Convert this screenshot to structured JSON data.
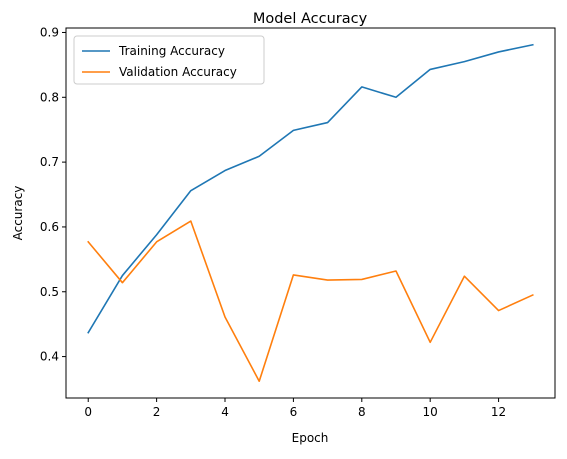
{
  "chart_data": {
    "type": "line",
    "title": "Model Accuracy",
    "xlabel": "Epoch",
    "ylabel": "Accuracy",
    "x": [
      0,
      1,
      2,
      3,
      4,
      5,
      6,
      7,
      8,
      9,
      10,
      11,
      12,
      13
    ],
    "series": [
      {
        "name": "Training Accuracy",
        "color": "#1f77b4",
        "values": [
          0.437,
          0.525,
          0.588,
          0.656,
          0.687,
          0.709,
          0.749,
          0.761,
          0.816,
          0.8,
          0.843,
          0.855,
          0.87,
          0.881
        ]
      },
      {
        "name": "Validation Accuracy",
        "color": "#ff7f0e",
        "values": [
          0.577,
          0.514,
          0.577,
          0.609,
          0.461,
          0.362,
          0.526,
          0.518,
          0.519,
          0.532,
          0.422,
          0.524,
          0.471,
          0.495
        ]
      }
    ],
    "xlim": [
      -0.65,
      13.65
    ],
    "ylim": [
      0.3361,
      0.9069
    ],
    "xticks": [
      0,
      2,
      4,
      6,
      8,
      10,
      12
    ],
    "xtick_labels": [
      "0",
      "2",
      "4",
      "6",
      "8",
      "10",
      "12"
    ],
    "yticks": [
      0.4,
      0.5,
      0.6,
      0.7,
      0.8,
      0.9
    ],
    "ytick_labels": [
      "0.4",
      "0.5",
      "0.6",
      "0.7",
      "0.8",
      "0.9"
    ],
    "grid": false,
    "legend_position": "upper-left"
  }
}
